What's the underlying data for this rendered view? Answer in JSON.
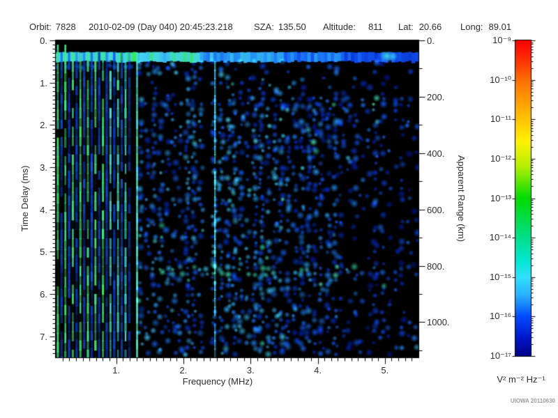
{
  "header": {
    "orbit_label": "Orbit:",
    "orbit_value": "7828",
    "datetime": "2010-02-09 (Day 040) 20:45:23.218",
    "sza_label": "SZA:",
    "sza_value": "135.50",
    "altitude_label": "Altitude:",
    "altitude_value": "811",
    "lat_label": "Lat:",
    "lat_value": "20.66",
    "long_label": "Long:",
    "long_value": "89.01"
  },
  "credit": "UIOWA 20110630",
  "chart_data": {
    "type": "heatmap",
    "title": "",
    "xlabel": "Frequency (MHz)",
    "ylabel_left": "Time Delay (ms)",
    "ylabel_right": "Apparent Range (km)",
    "x_range_mhz": [
      0.1,
      5.5
    ],
    "x_tick_values": [
      1,
      2,
      3,
      4,
      5
    ],
    "x_tick_labels": [
      "1.",
      "2.",
      "3.",
      "4.",
      "5."
    ],
    "x_minor_step": 0.1,
    "y_range_ms": [
      0,
      7.5
    ],
    "y_tick_values": [
      0,
      1,
      2,
      3,
      4,
      5,
      6,
      7
    ],
    "y_tick_labels": [
      "0.",
      "1.",
      "2.",
      "3.",
      "4.",
      "5.",
      "6.",
      "7."
    ],
    "y_minor_step": 0.1,
    "right_tick_values_km": [
      0,
      200,
      400,
      600,
      800,
      1000
    ],
    "right_tick_labels": [
      "0.",
      "200.",
      "400.",
      "600.",
      "800.",
      "1000."
    ],
    "right_minor_step_km": 100,
    "km_per_ms": 150,
    "colorbar": {
      "unit_label": "V² m⁻² Hz⁻¹",
      "tick_labels": [
        "10⁻⁹",
        "10⁻¹⁰",
        "10⁻¹¹",
        "10⁻¹²",
        "10⁻¹³",
        "10⁻¹⁴",
        "10⁻¹⁵",
        "10⁻¹⁶",
        "10⁻¹⁷"
      ],
      "decades": [
        -9,
        -10,
        -11,
        -12,
        -13,
        -14,
        -15,
        -16,
        -17
      ],
      "gradient": [
        [
          0,
          "#fe0000"
        ],
        [
          0.06,
          "#ff2e00"
        ],
        [
          0.125,
          "#ff6e00"
        ],
        [
          0.19,
          "#ff9c00"
        ],
        [
          0.25,
          "#ffc400"
        ],
        [
          0.32,
          "#fff200"
        ],
        [
          0.4,
          "#b4f000"
        ],
        [
          0.5,
          "#00dc00"
        ],
        [
          0.625,
          "#00e08c"
        ],
        [
          0.7,
          "#00e8d2"
        ],
        [
          0.75,
          "#32e0ff"
        ],
        [
          0.81,
          "#28aeff"
        ],
        [
          0.875,
          "#004aff"
        ],
        [
          0.94,
          "#0018cc"
        ],
        [
          1,
          "#000088"
        ]
      ]
    },
    "features": {
      "seed": 1337,
      "top_black_band_ms": [
        0,
        0.27
      ],
      "surface_echo_band_ms": [
        0.28,
        0.48
      ],
      "plasma_harmonic_f_start": 0.13,
      "plasma_harmonic_f_step": 0.112,
      "plasma_harmonic_count": 10,
      "strong_harmonic_line_f": 1.31,
      "noise_gap_f": [
        2.28,
        2.41
      ],
      "bright_line_f": 2.47,
      "second_echo": {
        "t_ms": 5.45,
        "f_range": [
          1.5,
          4.9
        ]
      },
      "bright_band_blob_f": 5.03,
      "noise_regions": [
        {
          "f": [
            1.35,
            2.28
          ],
          "density": 0.72,
          "level": 0.5
        },
        {
          "f": [
            2.41,
            3.6
          ],
          "density": 0.72,
          "level": 0.52
        },
        {
          "f": [
            3.6,
            4.3
          ],
          "density": 0.58,
          "level": 0.45
        },
        {
          "f": [
            4.3,
            5.0
          ],
          "density": 0.4,
          "level": 0.4
        },
        {
          "f": [
            5.0,
            5.5
          ],
          "density": 0.28,
          "level": 0.38
        }
      ]
    }
  }
}
